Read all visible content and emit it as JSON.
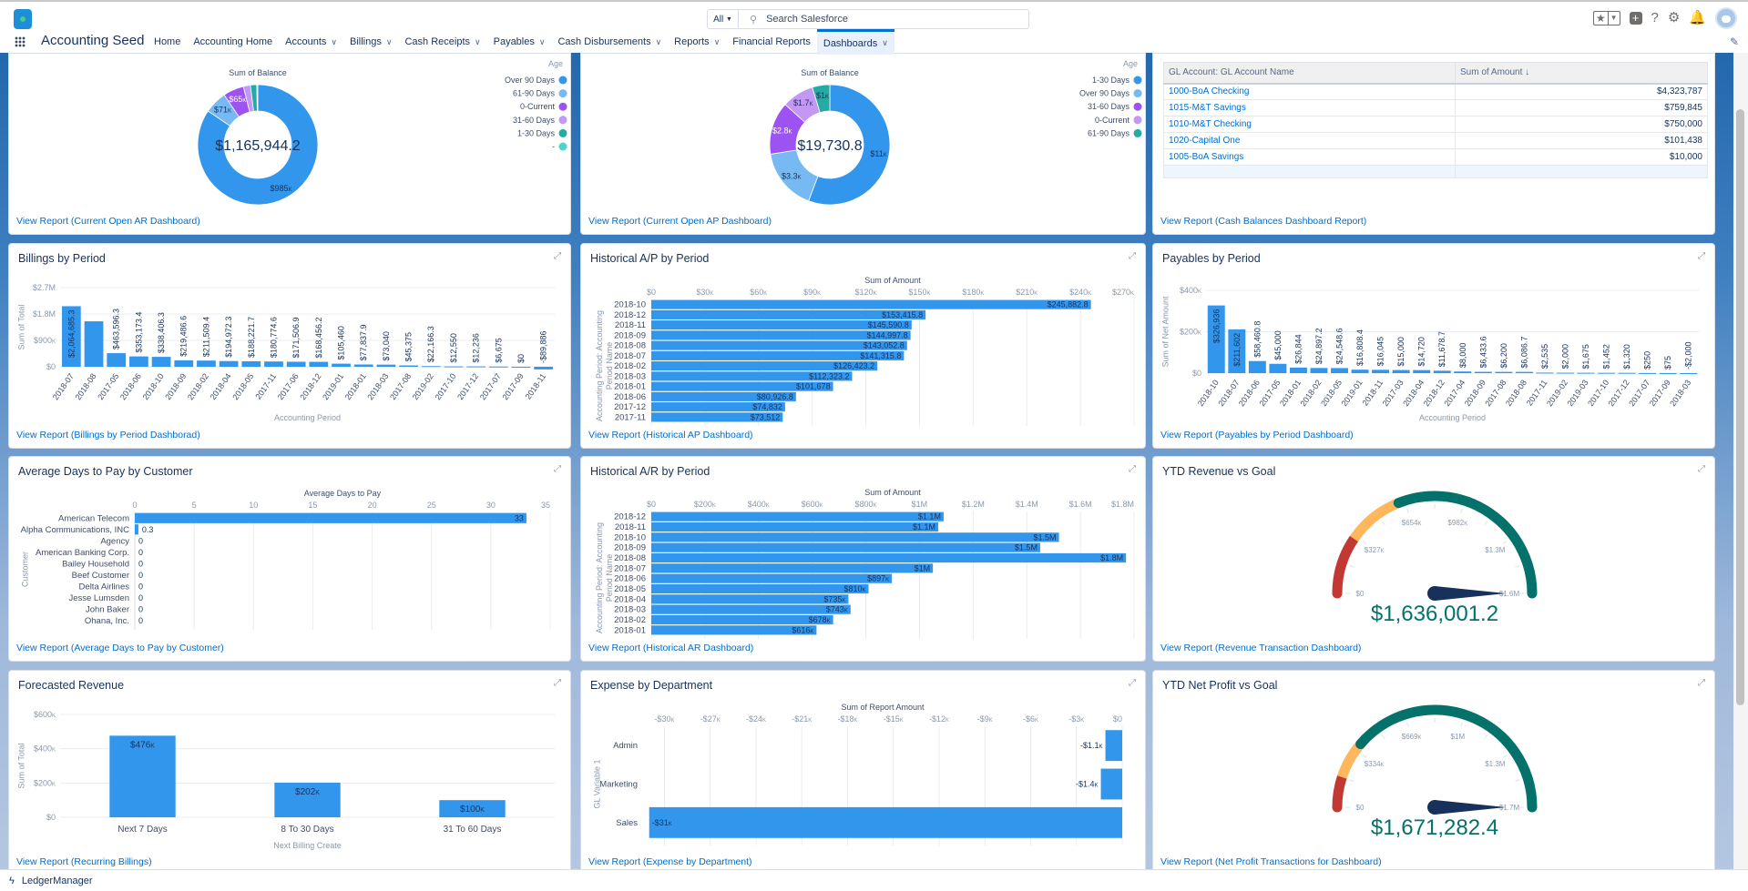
{
  "header": {
    "search_scope": "All",
    "search_placeholder": "Search Salesforce",
    "app_name": "Accounting Seed"
  },
  "nav": {
    "items": [
      {
        "label": "Home",
        "menu": false
      },
      {
        "label": "Accounting Home",
        "menu": false
      },
      {
        "label": "Accounts",
        "menu": true
      },
      {
        "label": "Billings",
        "menu": true
      },
      {
        "label": "Cash Receipts",
        "menu": true
      },
      {
        "label": "Payables",
        "menu": true
      },
      {
        "label": "Cash Disbursements",
        "menu": true
      },
      {
        "label": "Reports",
        "menu": true
      },
      {
        "label": "Financial Reports",
        "menu": false
      },
      {
        "label": "Dashboards",
        "menu": true,
        "active": true
      }
    ]
  },
  "header_icons": [
    "favorites-star-icon",
    "favorites-dropdown-icon",
    "global-add-icon",
    "help-icon",
    "setup-gear-icon",
    "notifications-bell-icon",
    "user-avatar"
  ],
  "panels": [
    {
      "link": "View Report (Current Open AR Dashboard)"
    },
    {
      "link": "View Report (Current Open AP Dashboard)"
    },
    {
      "link": "View Report (Cash Balances Dashboard Report)"
    },
    {
      "title": "Billings by Period",
      "link": "View Report (Billings by Period Dashborad)"
    },
    {
      "title": "Historical A/P by Period",
      "link": "View Report (Historical AP Dashboard)"
    },
    {
      "title": "Payables by Period",
      "link": "View Report (Payables by Period Dashboard)"
    },
    {
      "title": "Average Days to Pay by Customer",
      "link": "View Report (Average Days to Pay by Customer)"
    },
    {
      "title": "Historical A/R by Period",
      "link": "View Report (Historical AR Dashboard)"
    },
    {
      "title": "YTD Revenue vs Goal",
      "link": "View Report (Revenue Transaction Dashboard)"
    },
    {
      "title": "Forecasted Revenue",
      "link": "View Report (Recurring Billings)"
    },
    {
      "title": "Expense by Department",
      "link": "View Report (Expense by Department)"
    },
    {
      "title": "YTD Net Profit vs Goal",
      "link": "View Report (Net Profit Transactions for Dashboard)"
    }
  ],
  "colors": {
    "bar": "#3296ed",
    "link": "#006dcc",
    "text": "#16325c",
    "gauge_value": "#04716b",
    "needle": "#16325c"
  },
  "chart_data": [
    {
      "type": "pie",
      "variant": "donut",
      "title": "Sum of Balance",
      "legend_title": "Age",
      "legend": "right",
      "center_label": "$1,165,944.2",
      "total": 1165944.2,
      "slices": [
        {
          "name": "Over 90 Days",
          "value": 985000,
          "label": "$985k",
          "color": "#3296ed"
        },
        {
          "name": "61-90 Days",
          "value": 71000,
          "label": "$71k",
          "color": "#77b9f2"
        },
        {
          "name": "0-Current",
          "value": 65000,
          "label": "$65k",
          "color": "#9d53f2"
        },
        {
          "name": "31-60 Days",
          "value": 22000,
          "label": "",
          "color": "#c398f5"
        },
        {
          "name": "1-30 Days",
          "value": 20000,
          "label": "",
          "color": "#26aba4"
        },
        {
          "name": "-",
          "value": 2944.2,
          "label": "",
          "color": "#4ed4cd"
        }
      ]
    },
    {
      "type": "pie",
      "variant": "donut",
      "title": "Sum of Balance",
      "legend_title": "Age",
      "legend": "right",
      "center_label": "$19,730.8",
      "total": 19730.8,
      "slices": [
        {
          "name": "1-30 Days",
          "value": 11000,
          "label": "$11k",
          "color": "#3296ed"
        },
        {
          "name": "Over 90 Days",
          "value": 3300,
          "label": "$3.3k",
          "color": "#77b9f2"
        },
        {
          "name": "31-60 Days",
          "value": 2800,
          "label": "$2.8k",
          "color": "#9d53f2"
        },
        {
          "name": "0-Current",
          "value": 1700,
          "label": "$1.7k",
          "color": "#c398f5"
        },
        {
          "name": "61-90 Days",
          "value": 930.8,
          "label": "$1k",
          "color": "#26aba4"
        }
      ]
    },
    {
      "type": "table",
      "columns": [
        "GL Account: GL Account Name",
        "Sum of Amount ↓"
      ],
      "rows": [
        {
          "name": "1000-BoA Checking",
          "amount": "$4,323,787"
        },
        {
          "name": "1015-M&T Savings",
          "amount": "$759,845"
        },
        {
          "name": "1010-M&T Checking",
          "amount": "$750,000"
        },
        {
          "name": "1020-Capital One",
          "amount": "$101,438"
        },
        {
          "name": "1005-BoA Savings",
          "amount": "$10,000"
        }
      ]
    },
    {
      "type": "bar",
      "orientation": "vertical",
      "xlabel": "Accounting Period",
      "ylabel": "Sum of Total",
      "color": "#3296ed",
      "ylim": [
        -100000,
        2700000
      ],
      "grid": true,
      "y_ticks": [
        0,
        900000,
        1800000,
        2700000
      ],
      "y_tick_labels": [
        "$0",
        "$900k",
        "$1.8M",
        "$2.7M"
      ],
      "categories": [
        "2018-07",
        "2018-08",
        "2017-05",
        "2018-06",
        "2018-10",
        "2018-09",
        "2018-02",
        "2018-04",
        "2018-05",
        "2017-11",
        "2017-06",
        "2018-12",
        "2019-01",
        "2018-01",
        "2018-03",
        "2017-08",
        "2019-02",
        "2017-10",
        "2017-12",
        "2017-07",
        "2017-09",
        "2018-11"
      ],
      "values": [
        2064685.3,
        1550000,
        463596.3,
        353173.4,
        338406.3,
        219486.6,
        211509.4,
        194972.3,
        188221.7,
        180774.6,
        171506.9,
        168456.2,
        105460,
        77837.9,
        73040,
        45375,
        22166.3,
        12550,
        12236,
        6675,
        0,
        -89886
      ],
      "labels": [
        "$2,064,685.3",
        "",
        "$463,596.3",
        "$353,173.4",
        "$338,406.3",
        "$219,486.6",
        "$211,509.4",
        "$194,972.3",
        "$188,221.7",
        "$180,774.6",
        "$171,506.9",
        "$168,456.2",
        "$105,460",
        "$77,837.9",
        "$73,040",
        "$45,375",
        "$22,166.3",
        "$12,550",
        "$12,236",
        "$6,675",
        "$0",
        "-$89,886"
      ]
    },
    {
      "type": "bar",
      "orientation": "horizontal",
      "xlabel": "Sum of Amount",
      "ylabel": "Accounting Period: Accounting Period Name",
      "color": "#3296ed",
      "xlim": [
        0,
        270000
      ],
      "grid": true,
      "x_ticks": [
        0,
        30000,
        60000,
        90000,
        120000,
        150000,
        180000,
        210000,
        240000,
        270000
      ],
      "x_tick_labels": [
        "$0",
        "$30k",
        "$60k",
        "$90k",
        "$120k",
        "$150k",
        "$180k",
        "$210k",
        "$240k",
        "$270k"
      ],
      "categories": [
        "2018-10",
        "2018-12",
        "2018-11",
        "2018-09",
        "2018-08",
        "2018-07",
        "2018-02",
        "2018-03",
        "2018-01",
        "2018-06",
        "2017-12",
        "2017-11"
      ],
      "values": [
        245882.8,
        153415.8,
        145590.8,
        144997.8,
        143052.8,
        141315.8,
        126423.2,
        112323.2,
        101678,
        80926.8,
        74832,
        73512
      ],
      "labels": [
        "$245,882.8",
        "$153,415.8",
        "$145,590.8",
        "$144,997.8",
        "$143,052.8",
        "$141,315.8",
        "$126,423.2",
        "$112,323.2",
        "$101,678",
        "$80,926.8",
        "$74,832",
        "$73,512"
      ]
    },
    {
      "type": "bar",
      "orientation": "vertical",
      "xlabel": "Accounting Period",
      "ylabel": "Sum of Net Amount",
      "color": "#3296ed",
      "ylim": [
        -10000,
        400000
      ],
      "grid": true,
      "y_ticks": [
        0,
        200000,
        400000
      ],
      "y_tick_labels": [
        "$0",
        "$200k",
        "$400k"
      ],
      "categories": [
        "2018-10",
        "2018-07",
        "2018-06",
        "2017-05",
        "2018-01",
        "2018-02",
        "2018-05",
        "2019-01",
        "2018-11",
        "2017-03",
        "2018-04",
        "2018-12",
        "2017-04",
        "2018-09",
        "2017-08",
        "2018-08",
        "2017-11",
        "2019-02",
        "2019-03",
        "2017-10",
        "2017-12",
        "2017-07",
        "2017-09",
        "2018-03"
      ],
      "values": [
        326936,
        211602,
        58460.8,
        45000,
        26844,
        24897.2,
        24548.6,
        16808.4,
        16045,
        15000,
        14720,
        11678.7,
        8000,
        6433.6,
        6200,
        6086.7,
        2535,
        2000,
        1675,
        1452,
        1320,
        250,
        75,
        -2000
      ],
      "labels": [
        "$326,936",
        "$211,602",
        "$58,460.8",
        "$45,000",
        "$26,844",
        "$24,897.2",
        "$24,548.6",
        "$16,808.4",
        "$16,045",
        "$15,000",
        "$14,720",
        "$11,678.7",
        "$8,000",
        "$6,433.6",
        "$6,200",
        "$6,086.7",
        "$2,535",
        "$2,000",
        "$1,675",
        "$1,452",
        "$1,320",
        "$250",
        "$75",
        "-$2,000"
      ]
    },
    {
      "type": "bar",
      "orientation": "horizontal",
      "xlabel": "Average Days to Pay",
      "ylabel": "Customer",
      "color": "#3296ed",
      "xlim": [
        0,
        35
      ],
      "grid": true,
      "x_ticks": [
        0,
        5,
        10,
        15,
        20,
        25,
        30,
        35
      ],
      "x_tick_labels": [
        "0",
        "5",
        "10",
        "15",
        "20",
        "25",
        "30",
        "35"
      ],
      "categories": [
        "American Telecom",
        "Alpha Communications, INC",
        "Agency",
        "American Banking Corp.",
        "Bailey Household",
        "Beef Customer",
        "Delta Airlines",
        "Jesse Lumsden",
        "John Baker",
        "Ohana, Inc."
      ],
      "values": [
        33,
        0.3,
        0,
        0,
        0,
        0,
        0,
        0,
        0,
        0
      ],
      "labels": [
        "33",
        "0.3",
        "0",
        "0",
        "0",
        "0",
        "0",
        "0",
        "0",
        "0"
      ]
    },
    {
      "type": "bar",
      "orientation": "horizontal",
      "xlabel": "Sum of Amount",
      "ylabel": "Accounting Period: Accounting Period Name",
      "color": "#3296ed",
      "xlim": [
        0,
        1800000
      ],
      "grid": true,
      "x_ticks": [
        0,
        200000,
        400000,
        600000,
        800000,
        1000000,
        1200000,
        1400000,
        1600000,
        1800000
      ],
      "x_tick_labels": [
        "$0",
        "$200k",
        "$400k",
        "$600k",
        "$800k",
        "$1M",
        "$1.2M",
        "$1.4M",
        "$1.6M",
        "$1.8M"
      ],
      "categories": [
        "2018-12",
        "2018-11",
        "2018-10",
        "2018-09",
        "2018-08",
        "2018-07",
        "2018-06",
        "2018-05",
        "2018-04",
        "2018-03",
        "2018-02",
        "2018-01"
      ],
      "values": [
        1090000,
        1070000,
        1520000,
        1450000,
        1770000,
        1050000,
        897000,
        810000,
        735000,
        743000,
        678000,
        616000
      ],
      "labels": [
        "$1.1M",
        "$1.1M",
        "$1.5M",
        "$1.5M",
        "$1.8M",
        "$1M",
        "$897k",
        "$810k",
        "$735k",
        "$743k",
        "$678k",
        "$616k"
      ]
    },
    {
      "type": "gauge",
      "value": 1636001.2,
      "value_label": "$1,636,001.2",
      "min": 0,
      "max": 1636001.2,
      "tick_labels": [
        "$0",
        "$327k",
        "$654k",
        "$982k",
        "$1.3M",
        "$1.6M"
      ],
      "bands": [
        {
          "to": 310000,
          "color": "#c23934"
        },
        {
          "to": 620000,
          "color": "#ffb75d"
        },
        {
          "to": 1636001.2,
          "color": "#04716b"
        }
      ]
    },
    {
      "type": "bar",
      "orientation": "vertical",
      "xlabel": "Next Billing Create",
      "ylabel": "Sum of Total",
      "color": "#3296ed",
      "ylim": [
        0,
        600000
      ],
      "grid": true,
      "y_ticks": [
        0,
        200000,
        400000,
        600000
      ],
      "y_tick_labels": [
        "$0",
        "$200k",
        "$400k",
        "$600k"
      ],
      "categories": [
        "Next 7 Days",
        "8 To 30 Days",
        "31 To 60 Days"
      ],
      "values": [
        476000,
        202000,
        100000
      ],
      "labels": [
        "$476k",
        "$202k",
        "$100k"
      ]
    },
    {
      "type": "bar",
      "orientation": "horizontal",
      "xlabel": "Sum of Report Amount",
      "ylabel": "GL Variable 1",
      "color": "#3296ed",
      "xlim": [
        -31400,
        0
      ],
      "grid": true,
      "x_ticks": [
        -30000,
        -27000,
        -24000,
        -21000,
        -18000,
        -15000,
        -12000,
        -9000,
        -6000,
        -3000,
        0
      ],
      "x_tick_labels": [
        "-$30k",
        "-$27k",
        "-$24k",
        "-$21k",
        "-$18k",
        "-$15k",
        "-$12k",
        "-$9k",
        "-$6k",
        "-$3k",
        "$0"
      ],
      "categories": [
        "Admin",
        "Marketing",
        "Sales"
      ],
      "values": [
        -1100,
        -1400,
        -31000
      ],
      "labels": [
        "-$1.1k",
        "-$1.4k",
        "-$31k"
      ]
    },
    {
      "type": "gauge",
      "value": 1671282.4,
      "value_label": "$1,671,282.4",
      "min": 0,
      "max": 1671282.4,
      "tick_labels": [
        "$0",
        "$334k",
        "$669k",
        "$1M",
        "$1.3M",
        "$1.7M"
      ],
      "bands": [
        {
          "to": 167000,
          "color": "#c23934"
        },
        {
          "to": 376000,
          "color": "#ffb75d"
        },
        {
          "to": 1671282.4,
          "color": "#04716b"
        }
      ]
    }
  ],
  "footer": {
    "utility_label": "LedgerManager"
  }
}
